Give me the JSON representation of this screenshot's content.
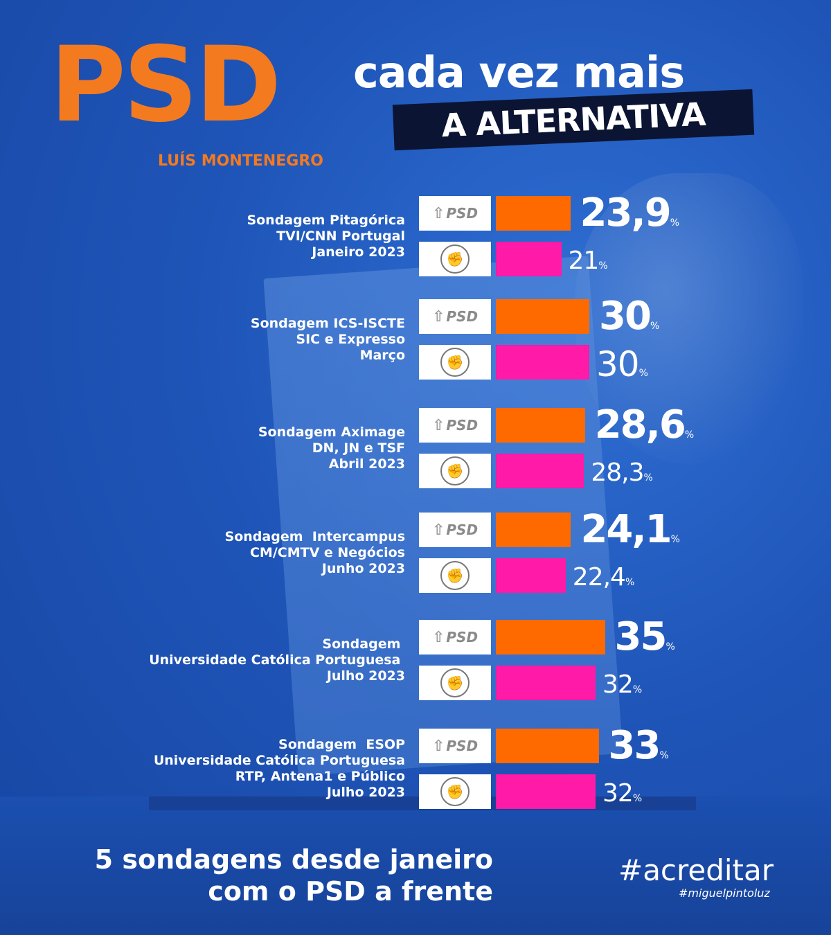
{
  "header": {
    "party": "PSD",
    "leader": "LUÍS MONTENEGRO",
    "tagline_line1": "cada vez mais",
    "tagline_line2": "A ALTERNATIVA"
  },
  "logos": {
    "psd": "PSD",
    "ps_icon": "fist-rose-icon"
  },
  "colors": {
    "psd_orange": "#ff6a00",
    "ps_pink": "#ff1aa8",
    "title_orange": "#f47a20",
    "background_blue": "#1f55b8"
  },
  "chart_data": {
    "type": "bar",
    "orientation": "horizontal",
    "polls": [
      {
        "label": "Sondagem Pitagórica\nTVI/CNN Portugal\nJaneiro 2023",
        "psd": 23.9,
        "ps": 21,
        "psd_text": "23,9",
        "ps_text": "21"
      },
      {
        "label": "Sondagem ICS-ISCTE\nSIC e Expresso\nMarço",
        "psd": 30,
        "ps": 30,
        "psd_text": "30",
        "ps_text": "30"
      },
      {
        "label": "Sondagem Aximage\nDN, JN e TSF\nAbril 2023",
        "psd": 28.6,
        "ps": 28.3,
        "psd_text": "28,6",
        "ps_text": "28,3"
      },
      {
        "label": "Sondagem  Intercampus\nCM/CMTV e Negócios\nJunho 2023",
        "psd": 24.1,
        "ps": 22.4,
        "psd_text": "24,1",
        "ps_text": "22,4"
      },
      {
        "label": "Sondagem \nUniversidade Católica Portuguesa \nJulho 2023",
        "psd": 35,
        "ps": 32,
        "psd_text": "35",
        "ps_text": "32"
      },
      {
        "label": "Sondagem  ESOP\nUniversidade Católica Portuguesa\nRTP, Antena1 e Público\nJulho 2023",
        "psd": 33,
        "ps": 32,
        "psd_text": "33",
        "ps_text": "32"
      }
    ],
    "unit": "%"
  },
  "footer": {
    "summary": "5 sondagens desde janeiro\ncom o PSD a frente",
    "hashtag": "#acreditar",
    "subhashtag": "#miguelpintoluz"
  }
}
